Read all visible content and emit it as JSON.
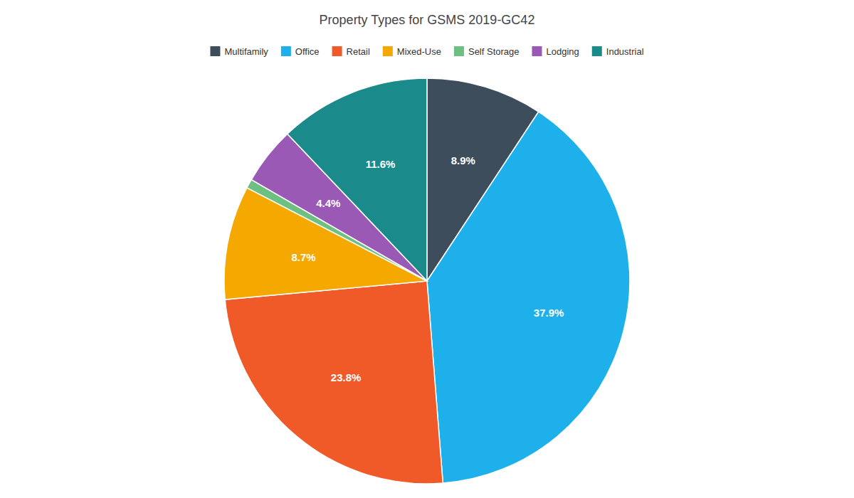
{
  "chart_data": {
    "type": "pie",
    "title": "Property Types for GSMS 2019-GC42",
    "categories": [
      "Multifamily",
      "Office",
      "Retail",
      "Mixed-Use",
      "Self Storage",
      "Lodging",
      "Industrial"
    ],
    "values": [
      8.9,
      37.9,
      23.8,
      8.7,
      0.7,
      4.4,
      11.6
    ],
    "value_labels": [
      "8.9%",
      "37.9%",
      "23.8%",
      "8.7%",
      null,
      "4.4%",
      "11.6%"
    ],
    "colors": [
      "#3d4d5c",
      "#1db0ea",
      "#f05a28",
      "#f5a800",
      "#6dbf82",
      "#9b59b6",
      "#1a8a8a"
    ],
    "data_labels": true,
    "legend": "top"
  }
}
